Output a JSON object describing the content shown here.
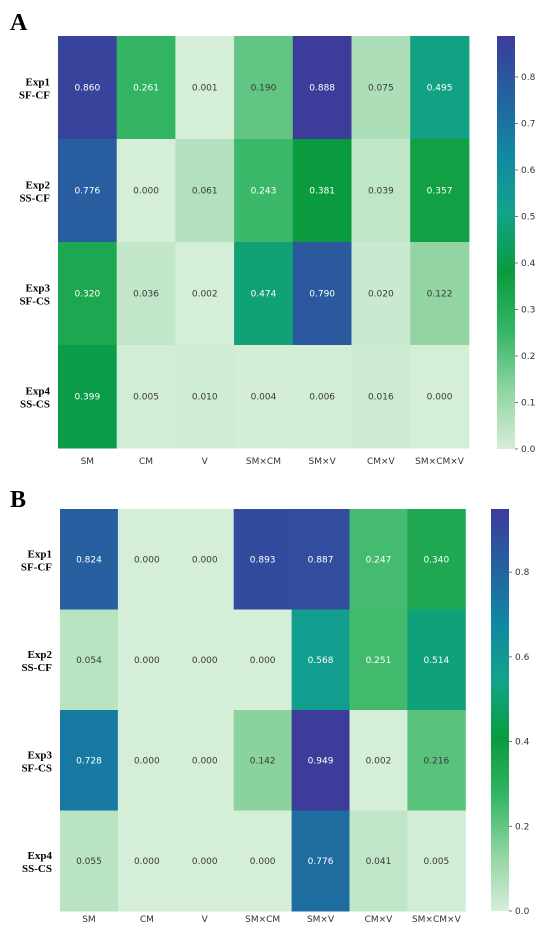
{
  "chart_data": [
    {
      "type": "heatmap",
      "panel_label": "A",
      "rows": [
        [
          "Exp1",
          "SF-CF"
        ],
        [
          "Exp2",
          "SS-CF"
        ],
        [
          "Exp3",
          "SF-CS"
        ],
        [
          "Exp4",
          "SS-CS"
        ]
      ],
      "columns": [
        "SM",
        "CM",
        "V",
        "SM×CM",
        "SM×V",
        "CM×V",
        "SM×CM×V"
      ],
      "values": [
        [
          0.86,
          0.261,
          0.001,
          0.19,
          0.888,
          0.075,
          0.495
        ],
        [
          0.776,
          0.0,
          0.061,
          0.243,
          0.381,
          0.039,
          0.357
        ],
        [
          0.32,
          0.036,
          0.002,
          0.474,
          0.79,
          0.02,
          0.122
        ],
        [
          0.399,
          0.005,
          0.01,
          0.004,
          0.006,
          0.016,
          0.0
        ]
      ],
      "labels": [
        [
          "0.860",
          "0.261",
          "0.001",
          "0.190",
          "0.888",
          "0.075",
          "0.495"
        ],
        [
          "0.776",
          "0.000",
          "0.061",
          "0.243",
          "0.381",
          "0.039",
          "0.357"
        ],
        [
          "0.320",
          "0.036",
          "0.002",
          "0.474",
          "0.790",
          "0.020",
          "0.122"
        ],
        [
          "0.399",
          "0.005",
          "0.010",
          "0.004",
          "0.006",
          "0.016",
          "0.000"
        ]
      ],
      "vmin": 0.0,
      "vmax": 0.888,
      "colorbar_ticks": [
        "0.0",
        "0.1",
        "0.2",
        "0.3",
        "0.4",
        "0.5",
        "0.6",
        "0.7",
        "0.8"
      ],
      "colorbar_tick_values": [
        0,
        0.1,
        0.2,
        0.3,
        0.4,
        0.5,
        0.6,
        0.7,
        0.8
      ],
      "colormap": [
        "#d5eed8",
        "#8fd4a0",
        "#34b565",
        "#0a9b3e",
        "#13a38a",
        "#1088a3",
        "#25619f",
        "#3d3c9b"
      ]
    },
    {
      "type": "heatmap",
      "panel_label": "B",
      "rows": [
        [
          "Exp1",
          "SF-CF"
        ],
        [
          "Exp2",
          "SS-CF"
        ],
        [
          "Exp3",
          "SF-CS"
        ],
        [
          "Exp4",
          "SS-CS"
        ]
      ],
      "columns": [
        "SM",
        "CM",
        "V",
        "SM×CM",
        "SM×V",
        "CM×V",
        "SM×CM×V"
      ],
      "values": [
        [
          0.824,
          0.0,
          0.0,
          0.893,
          0.887,
          0.247,
          0.34
        ],
        [
          0.054,
          0.0,
          0.0,
          0.0,
          0.568,
          0.251,
          0.514
        ],
        [
          0.728,
          0.0,
          0.0,
          0.142,
          0.949,
          0.002,
          0.216
        ],
        [
          0.055,
          0.0,
          0.0,
          0.0,
          0.776,
          0.041,
          0.005
        ]
      ],
      "labels": [
        [
          "0.824",
          "0.000",
          "0.000",
          "0.893",
          "0.887",
          "0.247",
          "0.340"
        ],
        [
          "0.054",
          "0.000",
          "0.000",
          "0.000",
          "0.568",
          "0.251",
          "0.514"
        ],
        [
          "0.728",
          "0.000",
          "0.000",
          "0.142",
          "0.949",
          "0.002",
          "0.216"
        ],
        [
          "0.055",
          "0.000",
          "0.000",
          "0.000",
          "0.776",
          "0.041",
          "0.005"
        ]
      ],
      "vmin": 0.0,
      "vmax": 0.949,
      "colorbar_ticks": [
        "0.0",
        "0.2",
        "0.4",
        "0.6",
        "0.8"
      ],
      "colorbar_tick_values": [
        0,
        0.2,
        0.4,
        0.6,
        0.8
      ],
      "colormap": [
        "#d5eed8",
        "#8fd4a0",
        "#34b565",
        "#0a9b3e",
        "#13a38a",
        "#1088a3",
        "#25619f",
        "#3d3c9b"
      ]
    }
  ]
}
